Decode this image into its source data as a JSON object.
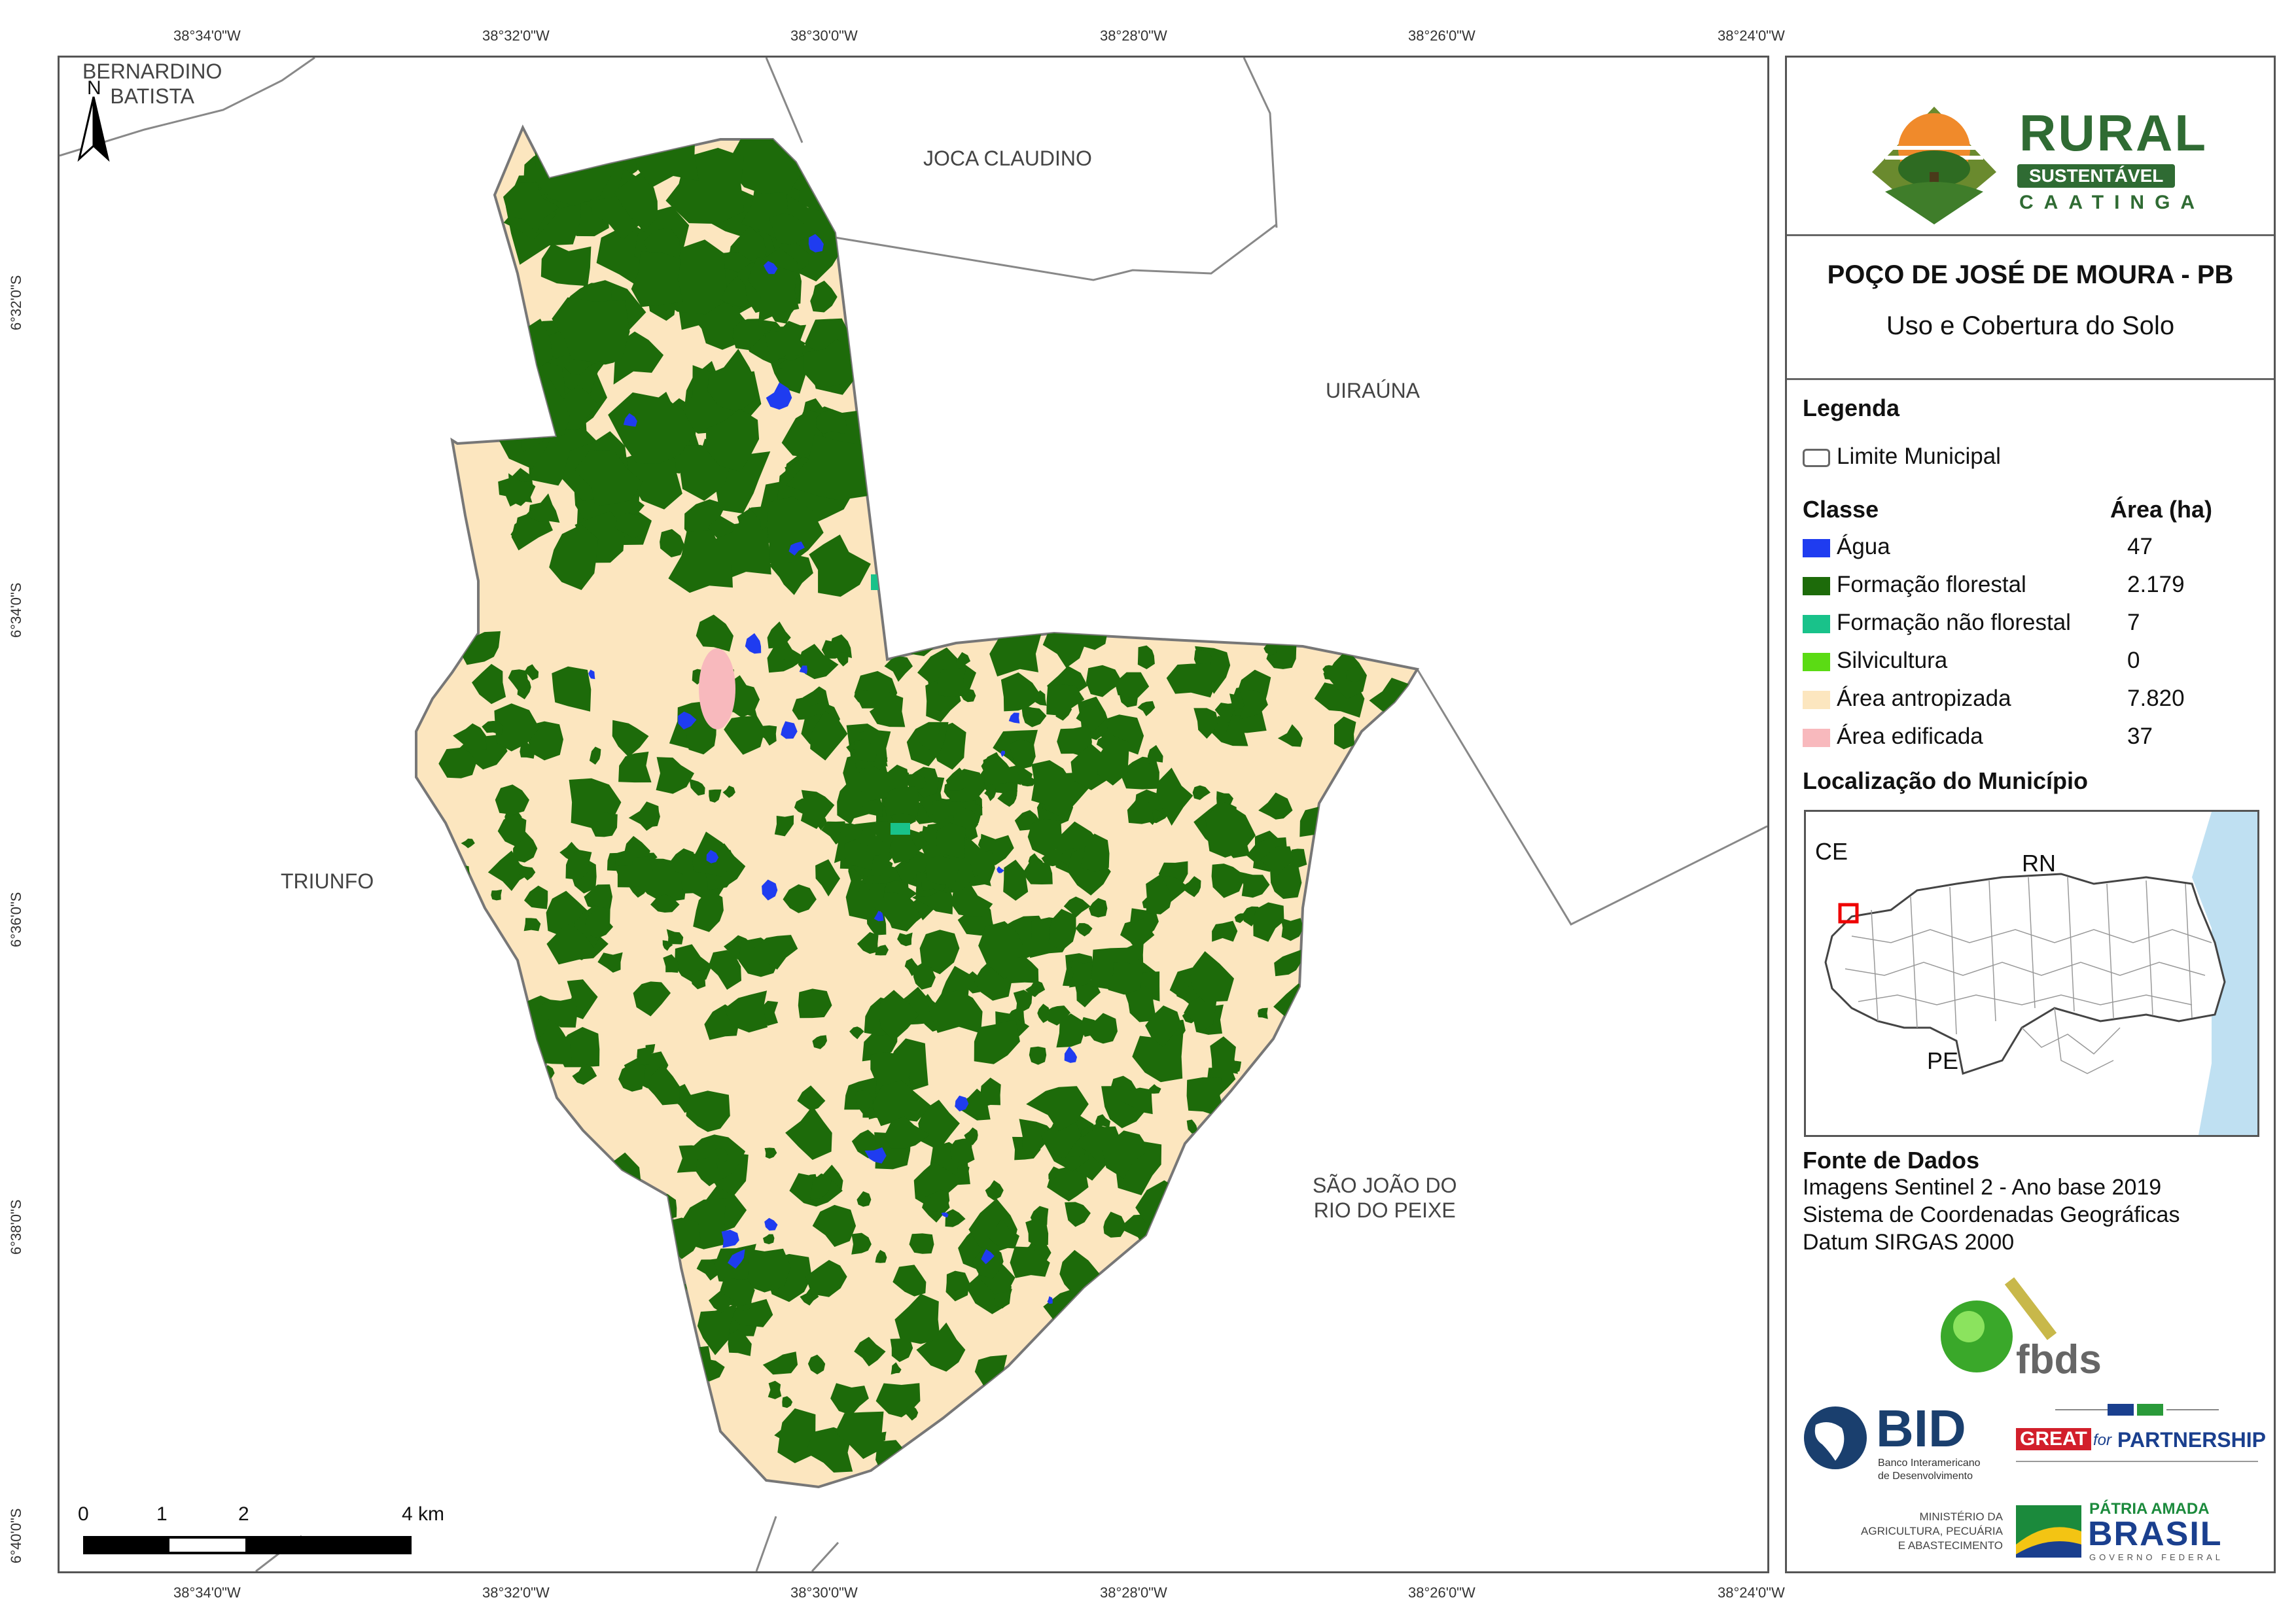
{
  "graticule": {
    "top": [
      "38°34'0\"W",
      "38°32'0\"W",
      "38°30'0\"W",
      "38°28'0\"W",
      "38°26'0\"W",
      "38°24'0\"W"
    ],
    "bottom": [
      "38°34'0\"W",
      "38°32'0\"W",
      "38°30'0\"W",
      "38°28'0\"W",
      "38°26'0\"W",
      "38°24'0\"W"
    ],
    "left": [
      "6°32'0\"S",
      "6°34'0\"S",
      "6°36'0\"S",
      "6°38'0\"S",
      "6°40'0\"S"
    ]
  },
  "map": {
    "neighbors": {
      "bernardino": "BERNARDINO\nBATISTA",
      "joca": "JOCA CLAUDINO",
      "uirauna": "UIRAÚNA",
      "triunfo": "TRIUNFO",
      "sao_joao": "SÃO JOÃO DO\nRIO DO PEIXE"
    },
    "north_label": "N",
    "scale": {
      "ticks": [
        "0",
        "1",
        "2",
        "4 km"
      ]
    },
    "colors": {
      "agua": "#1f3cf0",
      "florestal": "#1d6b0a",
      "nao_florestal": "#19c28a",
      "silvicultura": "#5bdb14",
      "antropizada": "#fce6bf",
      "edificada": "#f8b9bd",
      "boundary": "#777777"
    }
  },
  "panel": {
    "logo": {
      "rural": "RURAL",
      "sustentavel": "SUSTENTÁVEL",
      "caatinga": "CAATINGA"
    },
    "title": "POÇO DE JOSÉ DE MOURA - PB",
    "subtitle": "Uso e Cobertura do Solo",
    "legend": {
      "heading": "Legenda",
      "limite": "Limite Municipal",
      "classe_header": "Classe",
      "area_header": "Área (ha)",
      "classes": [
        {
          "label": "Água",
          "value": "47",
          "color": "#1f3cf0"
        },
        {
          "label": "Formação florestal",
          "value": "2.179",
          "color": "#1d6b0a"
        },
        {
          "label": "Formação não florestal",
          "value": "7",
          "color": "#19c28a"
        },
        {
          "label": "Silvicultura",
          "value": "0",
          "color": "#5bdb14"
        },
        {
          "label": "Área antropizada",
          "value": "7.820",
          "color": "#fce6bf"
        },
        {
          "label": "Área edificada",
          "value": "37",
          "color": "#f8b9bd"
        }
      ]
    },
    "location": {
      "heading": "Localização do Município",
      "labels": {
        "ce": "CE",
        "rn": "RN",
        "pe": "PE"
      }
    },
    "sources": {
      "heading": "Fonte de Dados",
      "lines": [
        "Imagens Sentinel 2 - Ano base 2019",
        "Sistema de Coordenadas Geográficas",
        "Datum SIRGAS 2000"
      ]
    },
    "logos": {
      "fbds": "fbds",
      "bid": "BID",
      "bid_sub1": "Banco Interamericano",
      "bid_sub2": "de Desenvolvimento",
      "great": "GREAT",
      "great_for": "for",
      "great_partnership": "PARTNERSHIP",
      "ministerio1": "MINISTÉRIO DA",
      "ministerio2": "AGRICULTURA, PECUÁRIA",
      "ministerio3": "E ABASTECIMENTO",
      "patria": "PÁTRIA AMADA",
      "brasil": "BRASIL",
      "governo": "GOVERNO FEDERAL"
    }
  }
}
